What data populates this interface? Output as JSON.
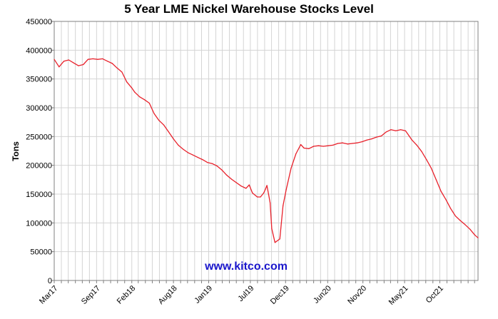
{
  "chart_data": {
    "type": "line",
    "title": "5 Year LME Nickel Warehouse Stocks Level",
    "xlabel": "",
    "ylabel": "Tons",
    "watermark": "www.kitco.com",
    "ylim": [
      0,
      450000
    ],
    "y_ticks": [
      0,
      50000,
      100000,
      150000,
      200000,
      250000,
      300000,
      350000,
      400000,
      450000
    ],
    "y_tick_labels": [
      "0",
      "50000",
      "100000",
      "150000",
      "200000",
      "250000",
      "300000",
      "350000",
      "400000",
      "450000"
    ],
    "xlim": [
      "2017-03-01",
      "2022-03-16"
    ],
    "x_tick_labels": [
      "Mar17",
      "Sep17",
      "Feb18",
      "Aug18",
      "Jan19",
      "Jul19",
      "Dec19",
      "Jun20",
      "Nov20",
      "May21",
      "Oct21"
    ],
    "x_tick_dates": [
      "2017-03-01",
      "2017-09-01",
      "2018-02-01",
      "2018-08-01",
      "2019-01-01",
      "2019-07-01",
      "2019-12-01",
      "2020-06-01",
      "2020-11-01",
      "2021-05-01",
      "2021-10-01"
    ],
    "grid": true,
    "line_color": "#e8212b",
    "watermark_color": "#1a16cc",
    "series": [
      {
        "x": [
          "2017-03-01",
          "2017-03-22",
          "2017-04-12",
          "2017-05-03",
          "2017-05-24",
          "2017-06-14",
          "2017-07-05",
          "2017-07-26",
          "2017-08-16",
          "2017-09-06",
          "2017-09-27",
          "2017-10-18",
          "2017-11-08",
          "2017-11-29",
          "2017-12-20",
          "2018-01-10",
          "2018-01-31",
          "2018-02-14",
          "2018-03-07",
          "2018-03-28",
          "2018-04-18",
          "2018-05-09",
          "2018-05-30",
          "2018-06-20",
          "2018-07-11",
          "2018-08-01",
          "2018-08-22",
          "2018-09-12",
          "2018-10-03",
          "2018-10-24",
          "2018-11-14",
          "2018-12-05",
          "2018-12-26",
          "2019-01-16",
          "2019-02-06",
          "2019-02-27",
          "2019-03-20",
          "2019-04-10",
          "2019-05-01",
          "2019-05-22",
          "2019-06-12",
          "2019-06-26",
          "2019-07-10",
          "2019-07-31",
          "2019-08-14",
          "2019-08-28",
          "2019-09-04",
          "2019-09-11",
          "2019-09-18",
          "2019-09-25",
          "2019-10-02",
          "2019-10-16",
          "2019-10-30",
          "2019-11-06",
          "2019-11-20",
          "2019-12-04",
          "2019-12-25",
          "2020-01-15",
          "2020-02-05",
          "2020-02-19",
          "2020-03-11",
          "2020-04-01",
          "2020-04-22",
          "2020-05-13",
          "2020-06-03",
          "2020-06-24",
          "2020-07-15",
          "2020-08-05",
          "2020-08-26",
          "2020-09-16",
          "2020-10-07",
          "2020-10-28",
          "2020-11-18",
          "2020-12-09",
          "2020-12-30",
          "2021-01-20",
          "2021-02-10",
          "2021-03-03",
          "2021-03-24",
          "2021-04-14",
          "2021-05-05",
          "2021-05-19",
          "2021-06-02",
          "2021-06-23",
          "2021-07-14",
          "2021-08-04",
          "2021-08-25",
          "2021-09-15",
          "2021-10-06",
          "2021-10-27",
          "2021-11-17",
          "2021-12-08",
          "2021-12-29",
          "2022-01-19",
          "2022-02-09",
          "2022-03-02",
          "2022-03-16"
        ],
        "values": [
          384000,
          371000,
          381000,
          383000,
          378000,
          373000,
          375000,
          384000,
          385000,
          384000,
          385000,
          381000,
          377000,
          369000,
          362000,
          345000,
          335000,
          327000,
          319000,
          314000,
          308000,
          290000,
          278000,
          270000,
          258000,
          246000,
          235000,
          228000,
          222000,
          218000,
          214000,
          210000,
          205000,
          203000,
          199000,
          192000,
          183000,
          176000,
          170000,
          164000,
          160000,
          166000,
          152000,
          145000,
          145000,
          152000,
          158000,
          165000,
          150000,
          135000,
          90000,
          66000,
          70000,
          72000,
          130000,
          158000,
          195000,
          220000,
          236000,
          230000,
          229000,
          233000,
          234000,
          233000,
          234000,
          235000,
          238000,
          239000,
          237000,
          238000,
          239000,
          241000,
          244000,
          246000,
          249000,
          251000,
          258000,
          262000,
          260000,
          262000,
          260000,
          252000,
          244000,
          235000,
          224000,
          210000,
          195000,
          175000,
          155000,
          141000,
          125000,
          112000,
          104000,
          97000,
          89000,
          79000,
          74000
        ]
      }
    ]
  }
}
